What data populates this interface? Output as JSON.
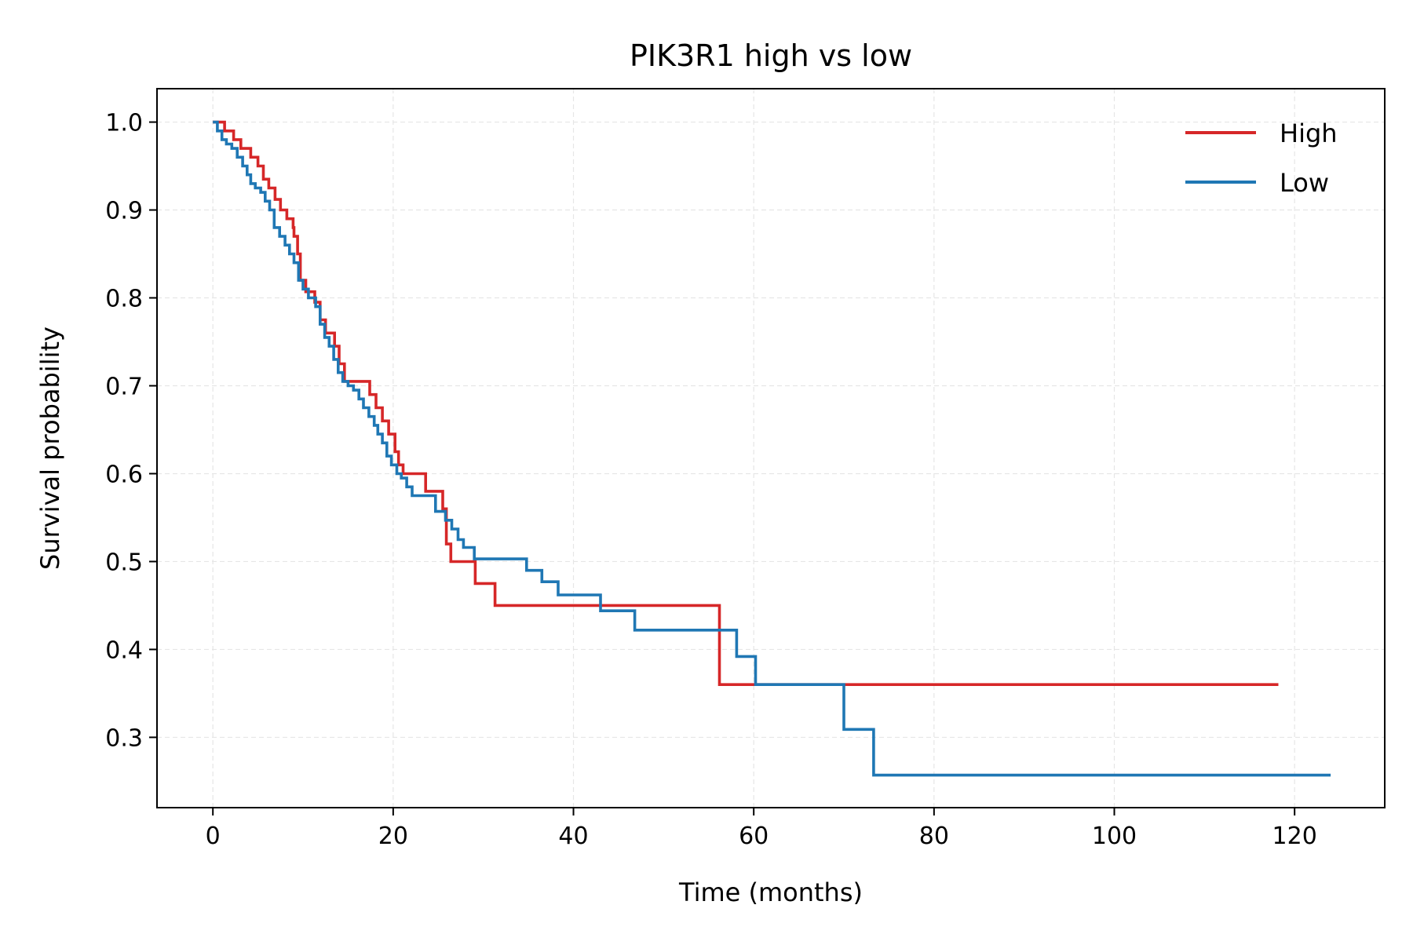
{
  "chart_data": {
    "type": "line",
    "step": "post",
    "title": "PIK3R1 high vs low",
    "xlabel": "Time (months)",
    "ylabel": "Survival probability",
    "xlim": [
      -6.2,
      130
    ],
    "ylim": [
      0.22,
      1.038
    ],
    "xticks": [
      0,
      20,
      40,
      60,
      80,
      100,
      120
    ],
    "yticks": [
      0.3,
      0.4,
      0.5,
      0.6,
      0.7,
      0.8,
      0.9,
      1.0
    ],
    "xtick_labels": [
      "0",
      "20",
      "40",
      "60",
      "80",
      "100",
      "120"
    ],
    "ytick_labels": [
      "0.3",
      "0.4",
      "0.5",
      "0.6",
      "0.7",
      "0.8",
      "0.9",
      "1.0"
    ],
    "grid": true,
    "legend_position": "top-right",
    "series": [
      {
        "name": "High",
        "color": "#d62728",
        "x": [
          0,
          1.3,
          2.3,
          3.1,
          4.2,
          5.0,
          5.6,
          6.2,
          6.9,
          7.5,
          8.2,
          8.9,
          9.0,
          9.4,
          9.7,
          10.3,
          11.3,
          11.9,
          12.5,
          13.5,
          14.0,
          14.6,
          15.3,
          17.4,
          18.1,
          18.8,
          19.5,
          20.2,
          20.6,
          21.1,
          23.6,
          25.5,
          25.9,
          26.4,
          29.1,
          31.3,
          56.2,
          118.2
        ],
        "y": [
          1.0,
          0.99,
          0.98,
          0.97,
          0.96,
          0.95,
          0.935,
          0.925,
          0.912,
          0.9,
          0.89,
          0.88,
          0.87,
          0.85,
          0.82,
          0.807,
          0.795,
          0.775,
          0.76,
          0.745,
          0.725,
          0.705,
          0.705,
          0.69,
          0.675,
          0.66,
          0.645,
          0.625,
          0.61,
          0.6,
          0.58,
          0.56,
          0.52,
          0.5,
          0.475,
          0.45,
          0.36,
          0.36
        ]
      },
      {
        "name": "Low",
        "color": "#1f77b4",
        "x": [
          0,
          0.5,
          1.0,
          1.5,
          2.1,
          2.7,
          3.3,
          3.8,
          4.2,
          4.7,
          5.3,
          5.8,
          6.3,
          6.8,
          7.4,
          8.0,
          8.5,
          9.0,
          9.5,
          10.0,
          10.6,
          11.4,
          11.9,
          12.4,
          12.9,
          13.4,
          13.9,
          14.4,
          15.0,
          15.6,
          16.2,
          16.7,
          17.3,
          17.9,
          18.3,
          18.8,
          19.3,
          19.8,
          20.4,
          20.9,
          21.5,
          22.1,
          24.7,
          25.8,
          26.5,
          27.2,
          27.8,
          29.0,
          34.8,
          36.5,
          38.3,
          43.0,
          46.8,
          58.1,
          60.2,
          70.0,
          73.3,
          124.0
        ],
        "y": [
          1.0,
          0.99,
          0.98,
          0.975,
          0.97,
          0.96,
          0.95,
          0.94,
          0.93,
          0.925,
          0.92,
          0.91,
          0.9,
          0.88,
          0.87,
          0.86,
          0.85,
          0.84,
          0.82,
          0.81,
          0.8,
          0.79,
          0.77,
          0.755,
          0.745,
          0.73,
          0.715,
          0.705,
          0.7,
          0.695,
          0.685,
          0.675,
          0.665,
          0.655,
          0.645,
          0.635,
          0.62,
          0.61,
          0.6,
          0.595,
          0.585,
          0.575,
          0.557,
          0.547,
          0.537,
          0.525,
          0.516,
          0.503,
          0.49,
          0.477,
          0.462,
          0.444,
          0.422,
          0.392,
          0.36,
          0.309,
          0.257,
          0.257
        ]
      }
    ]
  }
}
